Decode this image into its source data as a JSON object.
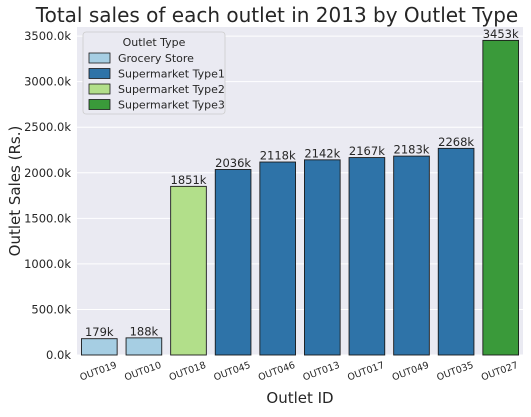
{
  "chart_data": {
    "type": "bar",
    "title": "Total sales of each outlet in 2013 by Outlet Type",
    "xlabel": "Outlet ID",
    "ylabel": "Outlet Sales (Rs.)",
    "ylim": [
      0,
      3600000
    ],
    "yticks": [
      0,
      500000,
      1000000,
      1500000,
      2000000,
      2500000,
      3000000,
      3500000
    ],
    "ytick_labels": [
      "0.0k",
      "500.0k",
      "1000.0k",
      "1500.0k",
      "2000.0k",
      "2500.0k",
      "3000.0k",
      "3500.0k"
    ],
    "grid": true,
    "legend": {
      "title": "Outlet Type",
      "placement": "top-left",
      "entries": [
        {
          "name": "Grocery Store",
          "color": "#a6cee3"
        },
        {
          "name": "Supermarket Type1",
          "color": "#2e73a8"
        },
        {
          "name": "Supermarket Type2",
          "color": "#b2df8a"
        },
        {
          "name": "Supermarket Type3",
          "color": "#3a9a3a"
        }
      ]
    },
    "categories": [
      "OUT019",
      "OUT010",
      "OUT018",
      "OUT045",
      "OUT046",
      "OUT013",
      "OUT017",
      "OUT049",
      "OUT035",
      "OUT027"
    ],
    "values": [
      179000,
      188000,
      1851000,
      2036000,
      2118000,
      2142000,
      2167000,
      2183000,
      2268000,
      3453000
    ],
    "data_labels": [
      "179k",
      "188k",
      "1851k",
      "2036k",
      "2118k",
      "2142k",
      "2167k",
      "2183k",
      "2268k",
      "3453k"
    ],
    "outlet_types": [
      "Grocery Store",
      "Grocery Store",
      "Supermarket Type2",
      "Supermarket Type1",
      "Supermarket Type1",
      "Supermarket Type1",
      "Supermarket Type1",
      "Supermarket Type1",
      "Supermarket Type1",
      "Supermarket Type3"
    ]
  },
  "style": {
    "plot_background": "#eaeaf2",
    "grid_color": "#ffffff",
    "bar_edge_color": "#1a1a1a"
  }
}
